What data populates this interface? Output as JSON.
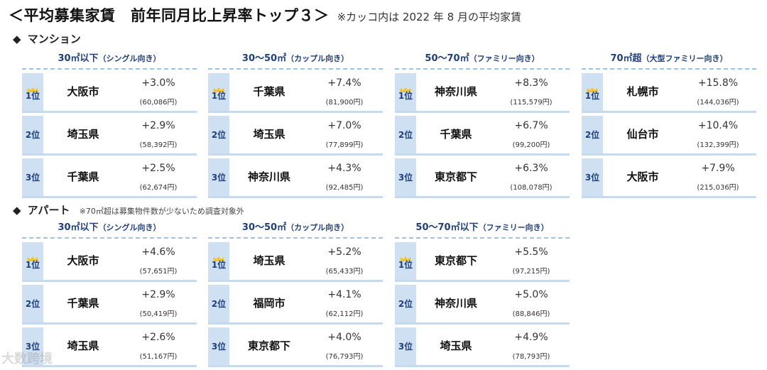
{
  "title": {
    "main": "＜平均募集家賃　前年同月比上昇率トップ３＞",
    "note": "※カッコ内は 2022 年 8 月の平均家賃"
  },
  "sections": [
    {
      "label": "マンション",
      "sub": "",
      "groups": [
        {
          "head": "30㎡以下",
          "paren": "（シングル向き）",
          "rows": [
            {
              "rank": "1位",
              "crown": true,
              "city": "大阪市",
              "pct": "+3.0%",
              "rent": "(60,086円)"
            },
            {
              "rank": "2位",
              "crown": false,
              "city": "埼玉県",
              "pct": "+2.9%",
              "rent": "(58,392円)"
            },
            {
              "rank": "3位",
              "crown": false,
              "city": "千葉県",
              "pct": "+2.5%",
              "rent": "(62,674円)"
            }
          ]
        },
        {
          "head": "30～50㎡",
          "paren": "（カップル向き）",
          "rows": [
            {
              "rank": "1位",
              "crown": true,
              "city": "千葉県",
              "pct": "+7.4%",
              "rent": "(81,900円)"
            },
            {
              "rank": "2位",
              "crown": false,
              "city": "埼玉県",
              "pct": "+7.0%",
              "rent": "(77,899円)"
            },
            {
              "rank": "3位",
              "crown": false,
              "city": "神奈川県",
              "pct": "+4.3%",
              "rent": "(92,485円)"
            }
          ]
        },
        {
          "head": "50～70㎡",
          "paren": "（ファミリー向き）",
          "rows": [
            {
              "rank": "1位",
              "crown": true,
              "city": "神奈川県",
              "pct": "+8.3%",
              "rent": "(115,579円)"
            },
            {
              "rank": "2位",
              "crown": false,
              "city": "千葉県",
              "pct": "+6.7%",
              "rent": "(99,200円)"
            },
            {
              "rank": "3位",
              "crown": false,
              "city": "東京都下",
              "pct": "+6.3%",
              "rent": "(108,078円)"
            }
          ]
        },
        {
          "head": "70㎡超",
          "paren": "（大型ファミリー向き）",
          "rows": [
            {
              "rank": "1位",
              "crown": true,
              "city": "札幌市",
              "pct": "+15.8%",
              "rent": "(144,036円)"
            },
            {
              "rank": "2位",
              "crown": false,
              "city": "仙台市",
              "pct": "+10.4%",
              "rent": "(132,399円)"
            },
            {
              "rank": "3位",
              "crown": false,
              "city": "大阪市",
              "pct": "+7.9%",
              "rent": "(215,036円)"
            }
          ]
        }
      ]
    },
    {
      "label": "アパート",
      "sub": "※70㎡超は募集物件数が少ないため調査対象外",
      "groups": [
        {
          "head": "30㎡以下",
          "paren": "（シングル向き）",
          "rows": [
            {
              "rank": "1位",
              "crown": true,
              "city": "大阪市",
              "pct": "+4.6%",
              "rent": "(57,651円)"
            },
            {
              "rank": "2位",
              "crown": false,
              "city": "千葉県",
              "pct": "+2.9%",
              "rent": "(50,419円)"
            },
            {
              "rank": "3位",
              "crown": false,
              "city": "埼玉県",
              "pct": "+2.6%",
              "rent": "(51,167円)"
            }
          ]
        },
        {
          "head": "30～50㎡",
          "paren": "（カップル向き）",
          "rows": [
            {
              "rank": "1位",
              "crown": true,
              "city": "埼玉県",
              "pct": "+5.2%",
              "rent": "(65,433円)"
            },
            {
              "rank": "2位",
              "crown": false,
              "city": "福岡市",
              "pct": "+4.1%",
              "rent": "(62,112円)"
            },
            {
              "rank": "3位",
              "crown": false,
              "city": "東京都下",
              "pct": "+4.0%",
              "rent": "(76,793円)"
            }
          ]
        },
        {
          "head": "50～70㎡以下",
          "paren": "（ファミリー向き）",
          "rows": [
            {
              "rank": "1位",
              "crown": true,
              "city": "東京都下",
              "pct": "+5.5%",
              "rent": "(97,215円)"
            },
            {
              "rank": "2位",
              "crown": false,
              "city": "神奈川県",
              "pct": "+5.0%",
              "rent": "(88,846円)"
            },
            {
              "rank": "3位",
              "crown": false,
              "city": "埼玉県",
              "pct": "+4.9%",
              "rent": "(78,793円)"
            }
          ]
        }
      ]
    }
  ],
  "watermark": "大数跨境",
  "colors": {
    "crown": "#f0c62d",
    "rank_bg": "#cfe0f2",
    "head_text": "#1f3f7a"
  },
  "icons": {
    "section_marker": "◆",
    "crown": "crown-icon"
  }
}
